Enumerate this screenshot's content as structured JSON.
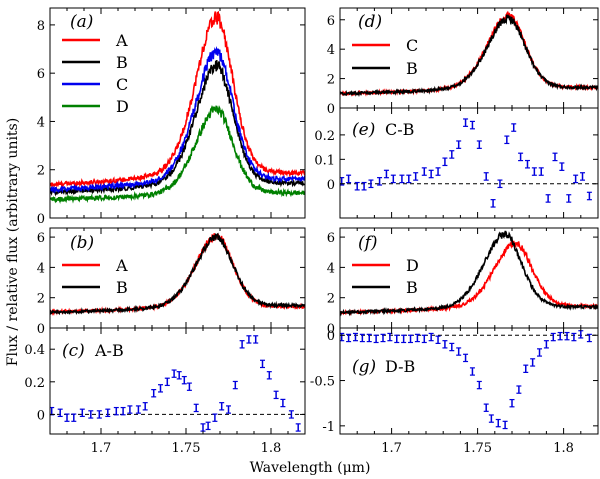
{
  "figure": {
    "ylabel": "Flux / relative flux (arbitrary units)",
    "xlabel": "Wavelength (μm)"
  },
  "chart_data": [
    {
      "id": "a",
      "type": "line",
      "panel_label": "(a)",
      "xlim": [
        1.67,
        1.82
      ],
      "ylim": [
        0,
        8.7
      ],
      "yticks": [
        0,
        2,
        4,
        6,
        8
      ],
      "peak": 1.768,
      "series": [
        {
          "name": "A",
          "color": "#ff0000",
          "cont_start": 1.35,
          "cont_end": 1.8,
          "peak": 8.3
        },
        {
          "name": "B",
          "color": "#000000",
          "cont_start": 1.05,
          "cont_end": 1.4,
          "peak": 6.3
        },
        {
          "name": "C",
          "color": "#0000ee",
          "cont_start": 1.15,
          "cont_end": 1.55,
          "peak": 6.9
        },
        {
          "name": "D",
          "color": "#008000",
          "cont_start": 0.75,
          "cont_end": 1.0,
          "peak": 4.5
        }
      ]
    },
    {
      "id": "b",
      "type": "line",
      "panel_label": "(b)",
      "xlim": [
        1.67,
        1.82
      ],
      "ylim": [
        0,
        6.6
      ],
      "yticks": [
        0,
        2,
        4,
        6
      ],
      "peak": 1.768,
      "series": [
        {
          "name": "A",
          "color": "#ff0000",
          "cont_start": 1.05,
          "cont_end": 1.35,
          "peak": 6.1
        },
        {
          "name": "B",
          "color": "#000000",
          "cont_start": 1.0,
          "cont_end": 1.45,
          "peak": 6.0
        }
      ]
    },
    {
      "id": "c",
      "type": "scatter",
      "panel_label": "(c)",
      "annotation": "A-B",
      "xlim": [
        1.67,
        1.82
      ],
      "ylim": [
        -0.12,
        0.53
      ],
      "yticks": [
        0,
        0.2,
        0.4
      ],
      "ytick_labels": [
        "0",
        "0.2",
        "0.4"
      ],
      "xticks": [
        1.7,
        1.75,
        1.8
      ],
      "xtick_labels": [
        "1.7",
        "1.75",
        "1.8"
      ],
      "x": [
        1.671,
        1.676,
        1.68,
        1.684,
        1.689,
        1.694,
        1.699,
        1.704,
        1.709,
        1.713,
        1.717,
        1.722,
        1.726,
        1.731,
        1.735,
        1.739,
        1.743,
        1.746,
        1.749,
        1.752,
        1.756,
        1.76,
        1.763,
        1.767,
        1.771,
        1.775,
        1.779,
        1.783,
        1.787,
        1.791,
        1.795,
        1.799,
        1.803,
        1.807,
        1.812,
        1.816
      ],
      "y": [
        0.02,
        0.01,
        -0.02,
        -0.02,
        0.01,
        0.0,
        0.0,
        0.01,
        0.02,
        0.02,
        0.03,
        0.03,
        0.05,
        0.13,
        0.16,
        0.2,
        0.25,
        0.24,
        0.21,
        0.17,
        0.04,
        -0.08,
        -0.07,
        -0.02,
        0.05,
        0.03,
        0.18,
        0.43,
        0.46,
        0.46,
        0.31,
        0.24,
        0.12,
        0.07,
        0.0,
        -0.08
      ]
    },
    {
      "id": "d",
      "type": "line",
      "panel_label": "(d)",
      "xlim": [
        1.67,
        1.82
      ],
      "ylim": [
        0,
        6.8
      ],
      "yticks": [
        0,
        2,
        4,
        6
      ],
      "peak": 1.768,
      "series": [
        {
          "name": "C",
          "color": "#ff0000",
          "cont_start": 0.95,
          "cont_end": 1.35,
          "peak": 6.3
        },
        {
          "name": "B",
          "color": "#000000",
          "cont_start": 0.95,
          "cont_end": 1.35,
          "peak": 6.1
        }
      ]
    },
    {
      "id": "e",
      "type": "scatter",
      "panel_label": "(e)",
      "annotation": "C-B",
      "xlim": [
        1.67,
        1.82
      ],
      "ylim": [
        -0.14,
        0.31
      ],
      "yticks": [
        0,
        0.1,
        0.2
      ],
      "ytick_labels": [
        "0",
        "0.1",
        "0.2"
      ],
      "x": [
        1.671,
        1.675,
        1.68,
        1.684,
        1.688,
        1.693,
        1.697,
        1.701,
        1.706,
        1.71,
        1.714,
        1.719,
        1.723,
        1.727,
        1.731,
        1.735,
        1.739,
        1.743,
        1.747,
        1.751,
        1.755,
        1.759,
        1.763,
        1.767,
        1.771,
        1.775,
        1.779,
        1.783,
        1.787,
        1.791,
        1.795,
        1.799,
        1.803,
        1.807,
        1.811,
        1.815
      ],
      "y": [
        0.01,
        0.02,
        -0.01,
        -0.01,
        0.0,
        0.01,
        0.04,
        0.02,
        0.02,
        0.02,
        0.03,
        0.05,
        0.04,
        0.05,
        0.09,
        0.12,
        0.16,
        0.25,
        0.24,
        0.16,
        0.03,
        -0.08,
        0.0,
        0.18,
        0.23,
        0.11,
        0.08,
        0.05,
        0.05,
        -0.06,
        0.11,
        0.07,
        -0.06,
        0.02,
        0.03,
        -0.05
      ]
    },
    {
      "id": "f",
      "type": "line",
      "panel_label": "(f)",
      "xlim": [
        1.67,
        1.82
      ],
      "ylim": [
        0,
        6.6
      ],
      "yticks": [
        0,
        2,
        4,
        6
      ],
      "peak": 1.768,
      "series": [
        {
          "name": "D",
          "color": "#ff0000",
          "cont_start": 1.0,
          "cont_end": 1.4,
          "peak": 5.6,
          "peak_shift": 0.004
        },
        {
          "name": "B",
          "color": "#000000",
          "cont_start": 1.0,
          "cont_end": 1.35,
          "peak": 6.2,
          "peak_shift": -0.002
        }
      ]
    },
    {
      "id": "g",
      "type": "scatter",
      "panel_label": "(g)",
      "annotation": "D-B",
      "xlim": [
        1.67,
        1.82
      ],
      "ylim": [
        -1.09,
        0.08
      ],
      "yticks": [
        0,
        -0.5,
        -1
      ],
      "ytick_labels": [
        "0",
        "-0.5",
        "-1"
      ],
      "xticks": [
        1.7,
        1.75,
        1.8
      ],
      "xtick_labels": [
        "1.7",
        "1.75",
        "1.8"
      ],
      "x": [
        1.671,
        1.675,
        1.679,
        1.683,
        1.687,
        1.691,
        1.695,
        1.699,
        1.703,
        1.707,
        1.711,
        1.715,
        1.719,
        1.723,
        1.727,
        1.731,
        1.735,
        1.739,
        1.743,
        1.747,
        1.751,
        1.755,
        1.758,
        1.762,
        1.766,
        1.77,
        1.774,
        1.778,
        1.782,
        1.786,
        1.79,
        1.794,
        1.798,
        1.802,
        1.806,
        1.81,
        1.815
      ],
      "y": [
        -0.02,
        -0.03,
        -0.02,
        -0.03,
        -0.03,
        -0.04,
        -0.03,
        -0.02,
        -0.04,
        -0.04,
        -0.04,
        -0.03,
        -0.04,
        -0.02,
        -0.05,
        -0.1,
        -0.13,
        -0.18,
        -0.25,
        -0.4,
        -0.55,
        -0.8,
        -0.92,
        -0.97,
        -0.99,
        -0.75,
        -0.6,
        -0.37,
        -0.3,
        -0.19,
        -0.1,
        -0.02,
        -0.01,
        -0.01,
        -0.02,
        0.01,
        -0.03
      ]
    }
  ]
}
